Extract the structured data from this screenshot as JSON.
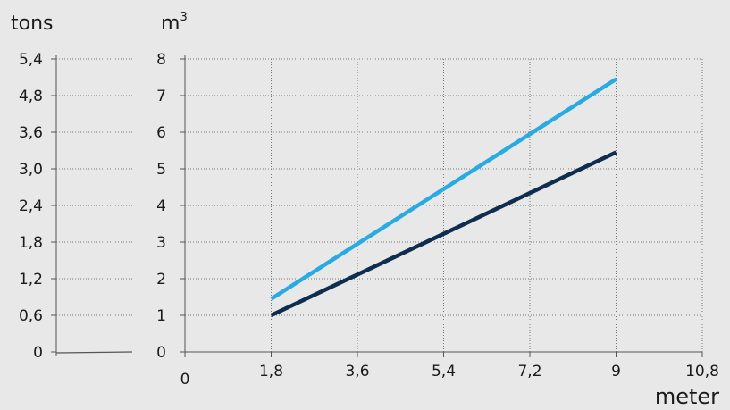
{
  "chart_data": {
    "type": "line",
    "left_axis": {
      "label": "tons",
      "ticks": [
        "0",
        "0,6",
        "1,2",
        "1,8",
        "2,4",
        "3,0",
        "3,6",
        "4,8",
        "5,4"
      ]
    },
    "right_axis": {
      "label": "m",
      "label_superscript": "3",
      "ticks": [
        0,
        1,
        2,
        3,
        4,
        5,
        6,
        7,
        8
      ],
      "ylim": [
        0,
        8
      ]
    },
    "x_axis": {
      "label": "meter",
      "ticks": [
        0,
        1.8,
        3.6,
        5.4,
        7.2,
        9,
        10.8
      ],
      "tick_labels": [
        "0",
        "1,8",
        "3,6",
        "5,4",
        "7,2",
        "9",
        "10,8"
      ],
      "xlim": [
        0,
        10.8
      ]
    },
    "grid": true,
    "series": [
      {
        "x": [
          1.8,
          9
        ],
        "values": [
          1.45,
          7.45
        ],
        "color": "#29abe2"
      },
      {
        "x": [
          1.8,
          9
        ],
        "values": [
          1.0,
          5.45
        ],
        "color": "#0f2d4f"
      }
    ]
  }
}
